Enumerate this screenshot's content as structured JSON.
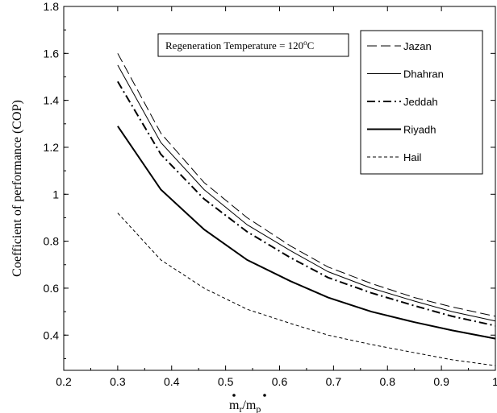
{
  "chart_data": {
    "type": "line",
    "title": "",
    "xlabel": "m_r/m_p",
    "xlabel_parts": {
      "m1": "m",
      "sub1": "r",
      "slash": "/",
      "m2": "m",
      "sub2": "p"
    },
    "ylabel": "Coefficient of performance (COP)",
    "xlim": [
      0.2,
      1.0
    ],
    "ylim": [
      0.25,
      1.8
    ],
    "x_ticks": [
      0.2,
      0.3,
      0.4,
      0.5,
      0.6,
      0.7,
      0.8,
      0.9,
      1.0
    ],
    "x_tick_labels": [
      "0.2",
      "0.3",
      "0.4",
      "0.5",
      "0.6",
      "0.7",
      "0.8",
      "0.9",
      "1"
    ],
    "y_ticks": [
      0.4,
      0.6,
      0.8,
      1.0,
      1.2,
      1.4,
      1.6,
      1.8
    ],
    "y_tick_labels": [
      "0.4",
      "0.6",
      "0.8",
      "1",
      "1.2",
      "1.4",
      "1.6",
      "1.8"
    ],
    "grid": false,
    "legend_position": "top-right",
    "annotation": {
      "text_main": "Regeneration Temperature = 120",
      "text_sup": "o",
      "text_unit": "C"
    },
    "x": [
      0.3,
      0.38,
      0.46,
      0.54,
      0.62,
      0.69,
      0.77,
      0.85,
      0.92,
      1.0
    ],
    "series": [
      {
        "name": "Jazan",
        "style": "long-dash",
        "values": [
          1.6,
          1.26,
          1.05,
          0.9,
          0.78,
          0.69,
          0.62,
          0.56,
          0.52,
          0.48
        ]
      },
      {
        "name": "Dhahran",
        "style": "solid-thin",
        "values": [
          1.55,
          1.22,
          1.02,
          0.87,
          0.76,
          0.67,
          0.6,
          0.545,
          0.5,
          0.46
        ]
      },
      {
        "name": "Jeddah",
        "style": "dash-dot",
        "values": [
          1.48,
          1.17,
          0.98,
          0.84,
          0.73,
          0.645,
          0.58,
          0.525,
          0.48,
          0.44
        ]
      },
      {
        "name": "Riyadh",
        "style": "solid-thick",
        "values": [
          1.29,
          1.02,
          0.85,
          0.72,
          0.63,
          0.56,
          0.5,
          0.455,
          0.42,
          0.385
        ]
      },
      {
        "name": "Hail",
        "style": "short-dash",
        "values": [
          0.92,
          0.72,
          0.6,
          0.51,
          0.45,
          0.4,
          0.36,
          0.325,
          0.295,
          0.27
        ]
      }
    ]
  }
}
